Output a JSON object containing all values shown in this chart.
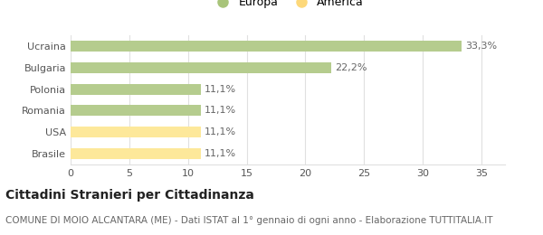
{
  "categories": [
    "Brasile",
    "USA",
    "Romania",
    "Polonia",
    "Bulgaria",
    "Ucraina"
  ],
  "values": [
    11.1,
    11.1,
    11.1,
    11.1,
    22.2,
    33.3
  ],
  "labels": [
    "11,1%",
    "11,1%",
    "11,1%",
    "11,1%",
    "22,2%",
    "33,3%"
  ],
  "colors": [
    "#fde89a",
    "#fde89a",
    "#b5cc8e",
    "#b5cc8e",
    "#b5cc8e",
    "#b5cc8e"
  ],
  "legend_items": [
    {
      "label": "Europa",
      "color": "#a8c47a"
    },
    {
      "label": "America",
      "color": "#fdd87a"
    }
  ],
  "xlim": [
    0,
    37
  ],
  "xticks": [
    0,
    5,
    10,
    15,
    20,
    25,
    30,
    35
  ],
  "title": "Cittadini Stranieri per Cittadinanza",
  "subtitle": "COMUNE DI MOIO ALCANTARA (ME) - Dati ISTAT al 1° gennaio di ogni anno - Elaborazione TUTTITALIA.IT",
  "title_fontsize": 10,
  "subtitle_fontsize": 7.5,
  "label_fontsize": 8,
  "tick_fontsize": 8,
  "bar_height": 0.5,
  "background_color": "#ffffff",
  "grid_color": "#e0e0e0"
}
